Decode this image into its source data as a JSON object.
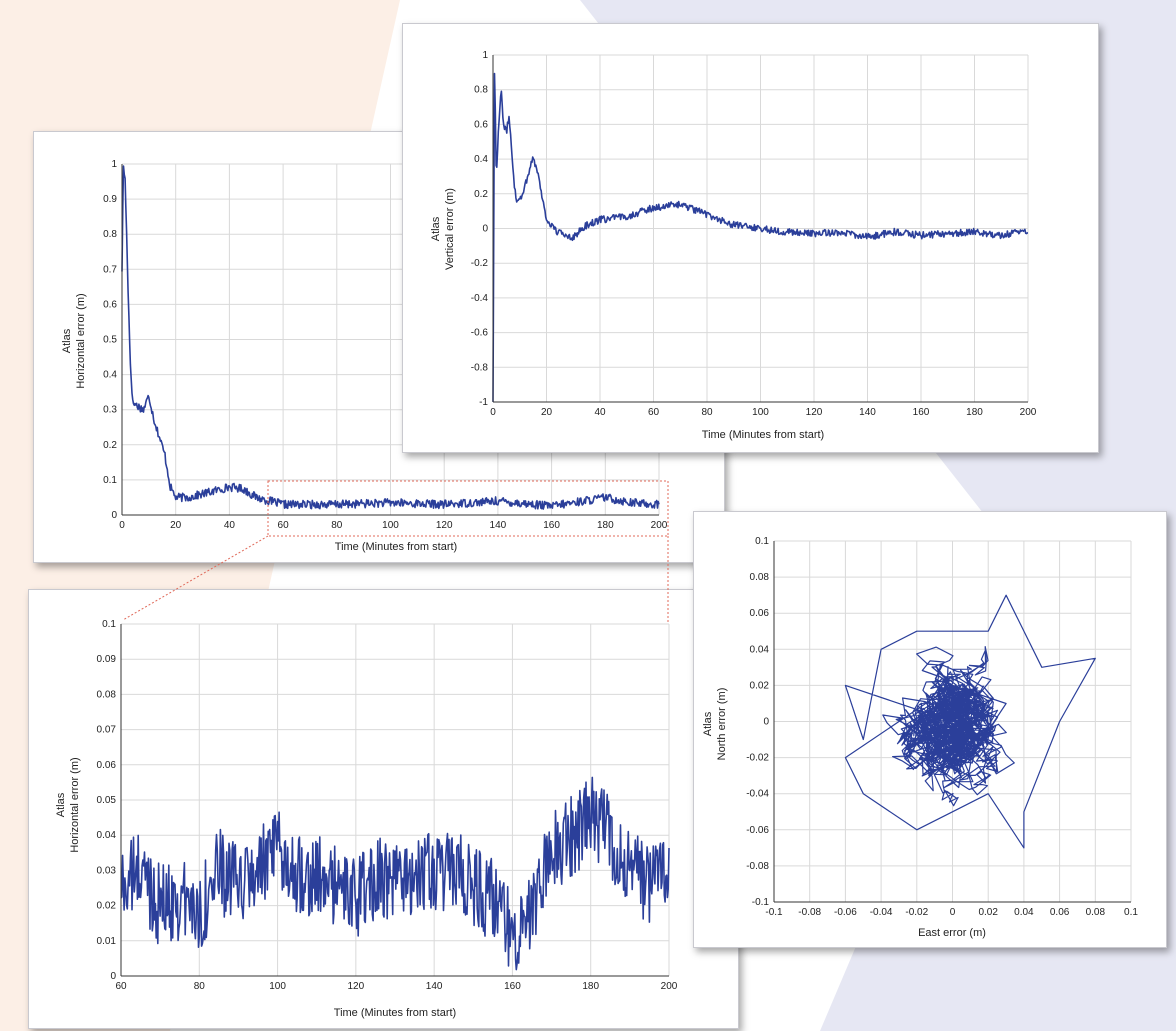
{
  "colors": {
    "series": "#2b3f9a",
    "bg_left": "#fcefe6",
    "bg_right": "#e6e7f3",
    "grid": "#d9d9d9",
    "highlight": "#e06a5a"
  },
  "chart_data": [
    {
      "id": "horizontal",
      "type": "line",
      "xlabel": "Time (Minutes from start)",
      "ylabel_lines": [
        "Atlas",
        "Horizontal error (m)"
      ],
      "xlim": [
        0,
        200
      ],
      "ylim": [
        0,
        1
      ],
      "xticks": [
        0,
        20,
        40,
        60,
        80,
        100,
        120,
        140,
        160,
        180,
        200
      ],
      "yticks": [
        0,
        0.1,
        0.2,
        0.3,
        0.4,
        0.5,
        0.6,
        0.7,
        0.8,
        0.9,
        1
      ],
      "grid": true,
      "noise": 0.012,
      "highlight_region": {
        "x": [
          57,
          205
        ],
        "y": [
          0,
          0.1
        ]
      },
      "series": [
        {
          "values": [
            [
              0,
              0.7
            ],
            [
              0.5,
              1.0
            ],
            [
              1.2,
              0.95
            ],
            [
              2,
              0.72
            ],
            [
              3,
              0.45
            ],
            [
              4,
              0.32
            ],
            [
              6,
              0.31
            ],
            [
              8,
              0.3
            ],
            [
              10,
              0.34
            ],
            [
              12,
              0.27
            ],
            [
              14,
              0.22
            ],
            [
              16,
              0.17
            ],
            [
              18,
              0.08
            ],
            [
              20,
              0.05
            ],
            [
              25,
              0.05
            ],
            [
              30,
              0.06
            ],
            [
              35,
              0.07
            ],
            [
              40,
              0.08
            ],
            [
              45,
              0.075
            ],
            [
              50,
              0.05
            ],
            [
              55,
              0.04
            ],
            [
              60,
              0.03
            ],
            [
              80,
              0.03
            ],
            [
              100,
              0.035
            ],
            [
              120,
              0.03
            ],
            [
              140,
              0.04
            ],
            [
              160,
              0.025
            ],
            [
              180,
              0.05
            ],
            [
              190,
              0.035
            ],
            [
              200,
              0.03
            ]
          ]
        }
      ]
    },
    {
      "id": "vertical",
      "type": "line",
      "xlabel": "Time (Minutes from start)",
      "ylabel_lines": [
        "Atlas",
        "Vertical error (m)"
      ],
      "xlim": [
        0,
        200
      ],
      "ylim": [
        -1,
        1
      ],
      "xticks": [
        0,
        20,
        40,
        60,
        80,
        100,
        120,
        140,
        160,
        180,
        200
      ],
      "yticks": [
        -1,
        -0.8,
        -0.6,
        -0.4,
        -0.2,
        0,
        0.2,
        0.4,
        0.6,
        0.8,
        1
      ],
      "grid": true,
      "noise": 0.02,
      "series": [
        {
          "values": [
            [
              0,
              -1.0
            ],
            [
              0.3,
              0.1
            ],
            [
              0.6,
              0.98
            ],
            [
              1.2,
              0.3
            ],
            [
              2,
              0.55
            ],
            [
              3,
              0.8
            ],
            [
              4,
              0.6
            ],
            [
              5,
              0.55
            ],
            [
              6,
              0.65
            ],
            [
              7,
              0.45
            ],
            [
              8,
              0.25
            ],
            [
              9,
              0.15
            ],
            [
              11,
              0.2
            ],
            [
              13,
              0.3
            ],
            [
              15,
              0.42
            ],
            [
              17,
              0.3
            ],
            [
              20,
              0.05
            ],
            [
              24,
              -0.02
            ],
            [
              30,
              -0.05
            ],
            [
              35,
              0.02
            ],
            [
              40,
              0.05
            ],
            [
              50,
              0.07
            ],
            [
              60,
              0.12
            ],
            [
              70,
              0.14
            ],
            [
              80,
              0.08
            ],
            [
              90,
              0.02
            ],
            [
              100,
              0.0
            ],
            [
              110,
              -0.02
            ],
            [
              120,
              -0.03
            ],
            [
              130,
              -0.02
            ],
            [
              140,
              -0.05
            ],
            [
              150,
              -0.02
            ],
            [
              160,
              -0.04
            ],
            [
              170,
              -0.03
            ],
            [
              180,
              -0.02
            ],
            [
              190,
              -0.04
            ],
            [
              200,
              -0.01
            ]
          ]
        }
      ]
    },
    {
      "id": "horizontal_zoom",
      "type": "line",
      "xlabel": "Time (Minutes from start)",
      "ylabel_lines": [
        "Atlas",
        "Horizontal error (m)"
      ],
      "xlim": [
        60,
        200
      ],
      "ylim": [
        0,
        0.1
      ],
      "xticks": [
        60,
        80,
        100,
        120,
        140,
        160,
        180,
        200
      ],
      "yticks": [
        0,
        0.01,
        0.02,
        0.03,
        0.04,
        0.05,
        0.06,
        0.07,
        0.08,
        0.09,
        0.1
      ],
      "grid": true,
      "noise": 0.012,
      "series": [
        {
          "values": [
            [
              60,
              0.025
            ],
            [
              65,
              0.03
            ],
            [
              70,
              0.02
            ],
            [
              75,
              0.022
            ],
            [
              80,
              0.018
            ],
            [
              85,
              0.03
            ],
            [
              90,
              0.025
            ],
            [
              95,
              0.03
            ],
            [
              100,
              0.035
            ],
            [
              105,
              0.03
            ],
            [
              110,
              0.028
            ],
            [
              115,
              0.025
            ],
            [
              120,
              0.022
            ],
            [
              125,
              0.028
            ],
            [
              130,
              0.025
            ],
            [
              135,
              0.03
            ],
            [
              140,
              0.028
            ],
            [
              145,
              0.03
            ],
            [
              150,
              0.025
            ],
            [
              155,
              0.022
            ],
            [
              160,
              0.012
            ],
            [
              165,
              0.02
            ],
            [
              170,
              0.035
            ],
            [
              175,
              0.04
            ],
            [
              180,
              0.045
            ],
            [
              185,
              0.04
            ],
            [
              190,
              0.03
            ],
            [
              195,
              0.025
            ],
            [
              200,
              0.03
            ]
          ]
        }
      ]
    },
    {
      "id": "east_north",
      "type": "scatter",
      "xlabel": "East error (m)",
      "ylabel_lines": [
        "Atlas",
        "North error (m)"
      ],
      "xlim": [
        -0.1,
        0.1
      ],
      "ylim": [
        -0.1,
        0.1
      ],
      "xticks": [
        -0.1,
        -0.08,
        -0.06,
        -0.04,
        -0.02,
        0,
        0.02,
        0.04,
        0.06,
        0.08,
        0.1
      ],
      "yticks": [
        -0.1,
        -0.08,
        -0.06,
        -0.04,
        -0.02,
        0,
        0.02,
        0.04,
        0.06,
        0.08,
        0.1
      ],
      "grid": true,
      "series": [
        {
          "values": [
            [
              0,
              0.0
            ],
            [
              -0.06,
              0.02
            ],
            [
              -0.05,
              -0.01
            ],
            [
              -0.04,
              0.04
            ],
            [
              -0.02,
              0.05
            ],
            [
              0.02,
              0.05
            ],
            [
              0.03,
              0.07
            ],
            [
              0.05,
              0.03
            ],
            [
              0.08,
              0.035
            ],
            [
              0.06,
              0.0
            ],
            [
              0.04,
              -0.05
            ],
            [
              0.04,
              -0.07
            ],
            [
              0.02,
              -0.04
            ],
            [
              0.0,
              -0.05
            ],
            [
              -0.02,
              -0.06
            ],
            [
              -0.05,
              -0.04
            ],
            [
              -0.06,
              -0.02
            ],
            [
              -0.03,
              0.0
            ],
            [
              0.0,
              0.02
            ],
            [
              0.03,
              0.01
            ],
            [
              0.01,
              -0.02
            ],
            [
              -0.01,
              0.01
            ],
            [
              0,
              0
            ]
          ]
        }
      ]
    }
  ]
}
